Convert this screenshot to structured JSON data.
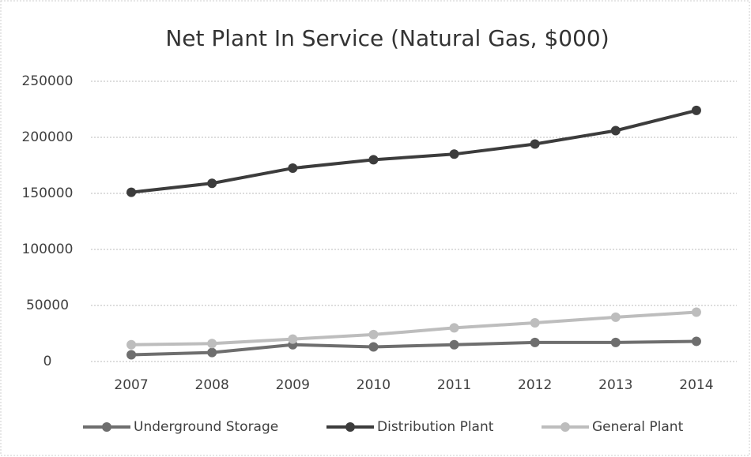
{
  "chart_data": {
    "type": "line",
    "title": "Net Plant In Service (Natural Gas, $000)",
    "categories": [
      "2007",
      "2008",
      "2009",
      "2010",
      "2011",
      "2012",
      "2013",
      "2014"
    ],
    "series": [
      {
        "name": "Underground Storage",
        "color": "#6e6e6e",
        "values": [
          6000,
          8000,
          15000,
          13000,
          15000,
          17000,
          17000,
          18000
        ]
      },
      {
        "name": "Distribution Plant",
        "color": "#3c3c3c",
        "values": [
          151000,
          159000,
          172500,
          180000,
          185000,
          194000,
          206000,
          224000
        ]
      },
      {
        "name": "General Plant",
        "color": "#bdbdbd",
        "values": [
          15000,
          16000,
          20000,
          24000,
          30000,
          34500,
          39500,
          44000
        ]
      }
    ],
    "ylim": [
      0,
      250000
    ],
    "yticks": [
      0,
      50000,
      100000,
      150000,
      200000,
      250000
    ],
    "grid": true,
    "legend": "bottom"
  }
}
